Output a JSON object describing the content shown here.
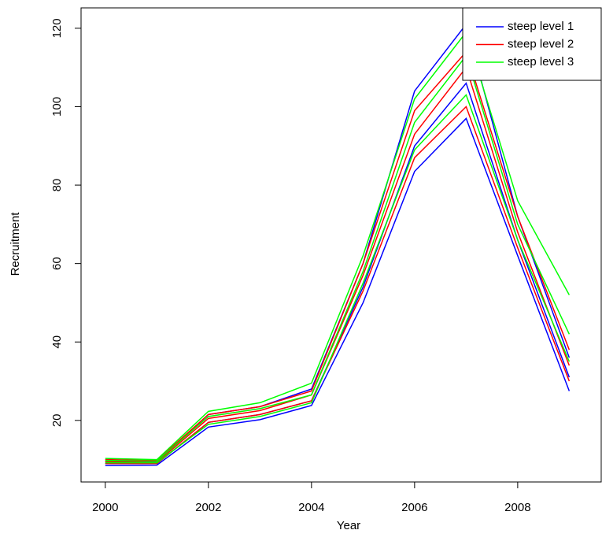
{
  "chart_data": {
    "type": "line",
    "x_label": "Year",
    "y_label": "Recruitment",
    "x": [
      2000,
      2001,
      2002,
      2003,
      2004,
      2005,
      2006,
      2007,
      2008,
      2009
    ],
    "series": [
      {
        "name": "steep level 1",
        "color": "#0000ff",
        "values": [
          [
            8.5,
            8.6,
            18.3,
            20.2,
            23.8,
            50,
            83.5,
            97,
            62,
            27.5
          ],
          [
            9,
            9,
            19.5,
            21.5,
            25,
            54,
            90,
            106,
            66,
            31
          ],
          [
            9.5,
            9.5,
            21.5,
            23.5,
            28,
            60,
            104,
            121,
            72,
            36
          ]
        ]
      },
      {
        "name": "steep level 2",
        "color": "#ff0000",
        "values": [
          [
            9,
            9,
            19.5,
            21.5,
            25,
            53,
            87,
            100,
            64,
            30
          ],
          [
            9.5,
            9.3,
            20.5,
            22.5,
            26.5,
            57,
            93,
            110,
            68,
            34
          ],
          [
            10,
            9.8,
            21.5,
            23.5,
            27.5,
            60,
            99,
            114,
            72,
            38
          ]
        ]
      },
      {
        "name": "steep level 3",
        "color": "#00ff00",
        "values": [
          [
            9.2,
            9.2,
            19,
            21,
            24.5,
            55,
            89,
            103,
            66,
            35
          ],
          [
            9.8,
            9.6,
            21,
            23,
            26.5,
            58,
            96,
            113,
            70,
            42
          ],
          [
            10.3,
            10,
            22.3,
            24.5,
            29.5,
            62,
            102,
            119,
            76,
            52
          ]
        ]
      }
    ],
    "xlim": [
      1999.53,
      2009.62
    ],
    "ylim": [
      4.3,
      125.2
    ],
    "xticks": [
      2000,
      2002,
      2004,
      2006,
      2008
    ],
    "yticks": [
      20,
      40,
      60,
      80,
      100,
      120
    ],
    "legend": "top-right"
  }
}
